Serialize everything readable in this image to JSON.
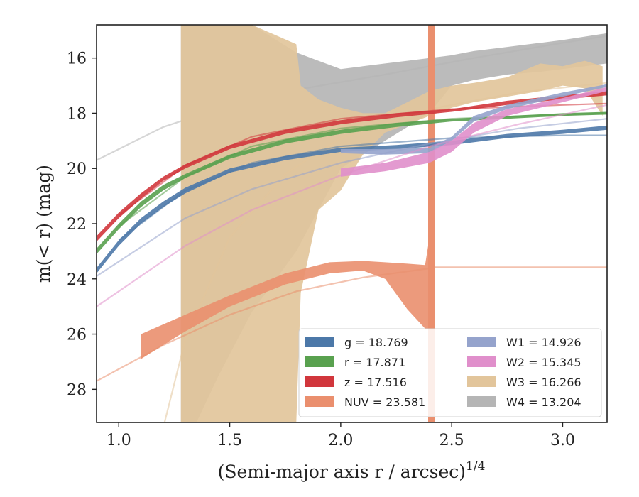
{
  "chart_data": {
    "type": "line",
    "xlabel": "(Semi-major axis r / arcsec)",
    "xlabel_sup": "1/4",
    "ylabel": "m(< r) (mag)",
    "xlim": [
      0.9,
      3.2
    ],
    "ylim": [
      29.2,
      14.8
    ],
    "y_inverted": true,
    "xticks": [
      1.0,
      1.5,
      2.0,
      2.5,
      3.0
    ],
    "xtick_labels": [
      "1.0",
      "1.5",
      "2.0",
      "2.5",
      "3.0"
    ],
    "yticks": [
      16,
      18,
      20,
      22,
      24,
      26,
      28
    ],
    "ytick_labels": [
      "16",
      "18",
      "20",
      "22",
      "24",
      "26",
      "28"
    ],
    "grid": false,
    "legend_position": "lower-right",
    "legend": [
      {
        "label": "g = 18.769",
        "color": "#4c78a8"
      },
      {
        "label": "r = 17.871",
        "color": "#59a14f"
      },
      {
        "label": "z = 17.516",
        "color": "#d1363c"
      },
      {
        "label": "NUV = 23.581",
        "color": "#ea8f6e"
      },
      {
        "label": "W1 = 14.926",
        "color": "#95a3cc"
      },
      {
        "label": "W2 = 15.345",
        "color": "#e08fcb"
      },
      {
        "label": "W3 = 16.266",
        "color": "#e2c59b"
      },
      {
        "label": "W4 = 13.204",
        "color": "#b5b5b5"
      }
    ],
    "series": [
      {
        "name": "g",
        "color": "#4c78a8",
        "band": [
          [
            0.9,
            23.6,
            23.8
          ],
          [
            1.0,
            22.6,
            22.8
          ],
          [
            1.1,
            21.8,
            22.0
          ],
          [
            1.2,
            21.2,
            21.4
          ],
          [
            1.3,
            20.7,
            20.9
          ],
          [
            1.5,
            20.0,
            20.15
          ],
          [
            1.75,
            19.55,
            19.7
          ],
          [
            2.0,
            19.25,
            19.4
          ],
          [
            2.25,
            19.15,
            19.3
          ],
          [
            2.5,
            19.0,
            19.15
          ],
          [
            2.75,
            18.75,
            18.9
          ],
          [
            3.0,
            18.6,
            18.75
          ],
          [
            3.2,
            18.45,
            18.6
          ]
        ],
        "model": [
          [
            1.0,
            22.6
          ],
          [
            1.3,
            20.8
          ],
          [
            1.6,
            19.8
          ],
          [
            2.0,
            19.2
          ],
          [
            2.5,
            18.9
          ],
          [
            3.0,
            18.8
          ],
          [
            3.2,
            18.8
          ]
        ]
      },
      {
        "name": "r",
        "color": "#59a14f",
        "band": [
          [
            0.9,
            22.9,
            23.1
          ],
          [
            1.0,
            22.0,
            22.2
          ],
          [
            1.1,
            21.2,
            21.4
          ],
          [
            1.2,
            20.6,
            20.8
          ],
          [
            1.3,
            20.2,
            20.35
          ],
          [
            1.5,
            19.5,
            19.65
          ],
          [
            1.75,
            18.95,
            19.1
          ],
          [
            2.0,
            18.6,
            18.75
          ],
          [
            2.25,
            18.35,
            18.5
          ],
          [
            2.5,
            18.2,
            18.3
          ],
          [
            2.75,
            18.1,
            18.2
          ],
          [
            3.0,
            18.0,
            18.1
          ],
          [
            3.2,
            17.95,
            18.05
          ]
        ],
        "model": [
          [
            1.0,
            22.1
          ],
          [
            1.3,
            20.3
          ],
          [
            1.6,
            19.2
          ],
          [
            2.0,
            18.55
          ],
          [
            2.5,
            18.2
          ],
          [
            3.0,
            18.05
          ],
          [
            3.2,
            18.0
          ]
        ]
      },
      {
        "name": "z",
        "color": "#d1363c",
        "band": [
          [
            0.9,
            22.45,
            22.65
          ],
          [
            1.0,
            21.6,
            21.8
          ],
          [
            1.1,
            20.9,
            21.1
          ],
          [
            1.2,
            20.3,
            20.45
          ],
          [
            1.3,
            19.85,
            20.0
          ],
          [
            1.5,
            19.15,
            19.3
          ],
          [
            1.75,
            18.6,
            18.75
          ],
          [
            2.0,
            18.25,
            18.4
          ],
          [
            2.25,
            18.0,
            18.15
          ],
          [
            2.5,
            17.85,
            17.95
          ],
          [
            2.75,
            17.55,
            17.7
          ],
          [
            3.0,
            17.35,
            17.5
          ],
          [
            3.2,
            17.2,
            17.35
          ]
        ],
        "model": [
          [
            1.0,
            21.7
          ],
          [
            1.3,
            19.9
          ],
          [
            1.6,
            18.85
          ],
          [
            2.0,
            18.2
          ],
          [
            2.5,
            17.85
          ],
          [
            3.0,
            17.7
          ],
          [
            3.2,
            17.65
          ]
        ]
      },
      {
        "name": "NUV",
        "color": "#ea8f6e",
        "band": [
          [
            1.1,
            26.0,
            26.9
          ],
          [
            1.3,
            25.3,
            25.9
          ],
          [
            1.5,
            24.6,
            25.0
          ],
          [
            1.75,
            23.8,
            24.2
          ],
          [
            1.95,
            23.4,
            23.8
          ],
          [
            2.1,
            23.35,
            23.7
          ],
          [
            2.2,
            23.4,
            24.0
          ],
          [
            2.3,
            23.45,
            25.1
          ],
          [
            2.38,
            23.5,
            25.8
          ],
          [
            2.4,
            22.5,
            25.85
          ]
        ],
        "model": [
          [
            0.9,
            27.7
          ],
          [
            1.2,
            26.4
          ],
          [
            1.5,
            25.3
          ],
          [
            1.8,
            24.45
          ],
          [
            2.1,
            23.95
          ],
          [
            2.4,
            23.62
          ],
          [
            2.42,
            23.58
          ],
          [
            3.2,
            23.58
          ]
        ],
        "spike_x": 2.41
      },
      {
        "name": "W1",
        "color": "#95a3cc",
        "band": [
          [
            2.0,
            19.3,
            19.45
          ],
          [
            2.2,
            19.3,
            19.5
          ],
          [
            2.4,
            19.25,
            19.45
          ],
          [
            2.5,
            18.85,
            19.0
          ],
          [
            2.6,
            18.1,
            18.3
          ],
          [
            2.75,
            17.7,
            17.85
          ],
          [
            3.0,
            17.25,
            17.4
          ],
          [
            3.2,
            16.95,
            17.05
          ]
        ],
        "model": [
          [
            0.9,
            23.9
          ],
          [
            1.3,
            21.8
          ],
          [
            1.6,
            20.75
          ],
          [
            2.0,
            19.8
          ],
          [
            2.4,
            19.1
          ],
          [
            2.8,
            18.55
          ],
          [
            3.2,
            18.2
          ]
        ]
      },
      {
        "name": "W2",
        "color": "#e08fcb",
        "band": [
          [
            2.0,
            20.0,
            20.3
          ],
          [
            2.2,
            19.8,
            20.1
          ],
          [
            2.4,
            19.4,
            19.8
          ],
          [
            2.5,
            19.0,
            19.4
          ],
          [
            2.6,
            18.35,
            18.7
          ],
          [
            2.75,
            17.85,
            18.1
          ],
          [
            3.0,
            17.45,
            17.6
          ],
          [
            3.2,
            17.05,
            17.2
          ]
        ],
        "model": [
          [
            0.9,
            25.0
          ],
          [
            1.3,
            22.8
          ],
          [
            1.6,
            21.5
          ],
          [
            2.0,
            20.25
          ],
          [
            2.4,
            19.2
          ],
          [
            2.8,
            18.4
          ],
          [
            3.2,
            17.7
          ]
        ]
      },
      {
        "name": "W3",
        "color": "#e2c59b",
        "band": [
          [
            1.28,
            14.8,
            29.2
          ],
          [
            1.4,
            14.8,
            29.2
          ],
          [
            1.6,
            14.8,
            29.2
          ],
          [
            1.8,
            15.5,
            29.2
          ],
          [
            1.82,
            17.0,
            24.5
          ],
          [
            1.9,
            17.5,
            21.5
          ],
          [
            2.0,
            17.8,
            20.8
          ],
          [
            2.1,
            18.0,
            19.5
          ],
          [
            2.2,
            18.0,
            18.7
          ],
          [
            2.3,
            17.6,
            18.4
          ],
          [
            2.4,
            17.2,
            18.1
          ],
          [
            2.5,
            17.0,
            17.8
          ],
          [
            2.6,
            16.9,
            17.6
          ],
          [
            2.75,
            16.7,
            17.4
          ],
          [
            2.9,
            16.2,
            17.2
          ],
          [
            3.0,
            16.3,
            17.0
          ],
          [
            3.1,
            16.1,
            17.1
          ],
          [
            3.18,
            16.3,
            18.1
          ]
        ],
        "model": [
          [
            1.15,
            31.0
          ],
          [
            1.3,
            26.2
          ],
          [
            1.5,
            22.5
          ],
          [
            1.75,
            20.2
          ],
          [
            2.0,
            18.9
          ],
          [
            2.4,
            17.85
          ],
          [
            2.8,
            17.25
          ],
          [
            3.2,
            16.9
          ]
        ]
      },
      {
        "name": "W4",
        "color": "#b5b5b5",
        "band": [
          [
            1.28,
            14.8,
            29.2
          ],
          [
            1.35,
            14.8,
            29.2
          ],
          [
            1.45,
            14.8,
            27.5
          ],
          [
            1.6,
            14.8,
            25.2
          ],
          [
            1.8,
            15.8,
            23.0
          ],
          [
            1.9,
            16.1,
            21.5
          ],
          [
            2.0,
            16.4,
            20.0
          ],
          [
            2.1,
            16.3,
            19.5
          ],
          [
            2.2,
            16.2,
            19.0
          ],
          [
            2.3,
            16.1,
            18.5
          ],
          [
            2.4,
            16.0,
            18.0
          ],
          [
            2.5,
            15.9,
            17.0
          ],
          [
            2.6,
            15.75,
            16.8
          ],
          [
            2.75,
            15.6,
            16.6
          ],
          [
            2.9,
            15.45,
            16.5
          ],
          [
            3.0,
            15.35,
            16.4
          ],
          [
            3.2,
            15.1,
            16.2
          ]
        ],
        "model": [
          [
            0.9,
            19.7
          ],
          [
            1.2,
            18.5
          ],
          [
            1.5,
            17.7
          ],
          [
            1.8,
            17.15
          ],
          [
            2.2,
            16.6
          ],
          [
            2.6,
            16.0
          ],
          [
            3.0,
            15.45
          ],
          [
            3.2,
            15.2
          ]
        ]
      }
    ]
  }
}
